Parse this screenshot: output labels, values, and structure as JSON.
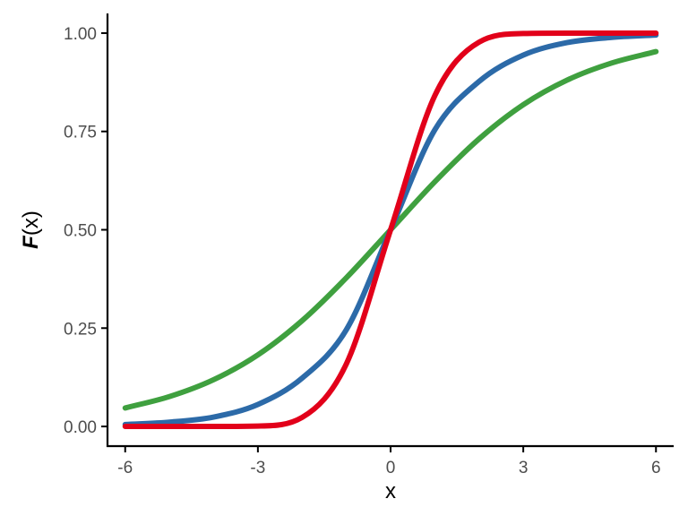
{
  "chart_data": {
    "type": "line",
    "title": "",
    "xlabel": "x",
    "ylabel_italic_bold": "F",
    "ylabel_rest": "(x)",
    "xlim": [
      -6.4,
      6.4
    ],
    "ylim": [
      -0.05,
      1.05
    ],
    "xticks": [
      -6,
      -3,
      0,
      3,
      6
    ],
    "xtick_labels": [
      "-6",
      "-3",
      "0",
      "3",
      "6"
    ],
    "yticks": [
      0,
      0.25,
      0.5,
      0.75,
      1.0
    ],
    "ytick_labels": [
      "0.00",
      "0.25",
      "0.50",
      "0.75",
      "1.00"
    ],
    "grid": false,
    "legend": "none",
    "x": [
      -6,
      -5,
      -4,
      -3,
      -2,
      -1,
      0,
      1,
      2,
      3,
      4,
      5,
      6
    ],
    "series": [
      {
        "color": "#e2001a",
        "values": [
          0.0,
          0.0,
          0.0,
          0.001,
          0.023,
          0.159,
          0.5,
          0.841,
          0.977,
          0.999,
          1.0,
          1.0,
          1.0
        ]
      },
      {
        "color": "#2c6aa8",
        "values": [
          0.005,
          0.011,
          0.024,
          0.056,
          0.123,
          0.246,
          0.5,
          0.754,
          0.877,
          0.944,
          0.976,
          0.989,
          0.995
        ]
      },
      {
        "color": "#3fa03f",
        "values": [
          0.047,
          0.076,
          0.119,
          0.182,
          0.269,
          0.378,
          0.5,
          0.622,
          0.731,
          0.818,
          0.881,
          0.924,
          0.953
        ]
      }
    ]
  }
}
